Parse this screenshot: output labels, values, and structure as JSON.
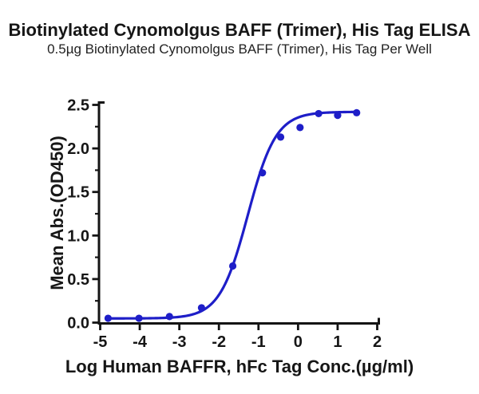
{
  "title": "Biotinylated Cynomolgus BAFF (Trimer), His Tag ELISA",
  "subtitle": "0.5µg Biotinylated Cynomolgus BAFF (Trimer), His Tag Per Well",
  "chart_data": {
    "type": "scatter",
    "title": "Biotinylated Cynomolgus BAFF (Trimer), His Tag ELISA",
    "subtitle": "0.5µg Biotinylated Cynomolgus BAFF (Trimer), His Tag Per Well",
    "xlabel": "Log Human BAFFR, hFc Tag Conc.(µg/ml)",
    "ylabel": "Mean Abs.(OD450)",
    "xlim": [
      -5,
      2
    ],
    "ylim": [
      0,
      2.5
    ],
    "grid": false,
    "legend": "none",
    "xticks": [
      -5,
      -4,
      -3,
      -2,
      -1,
      0,
      1,
      2
    ],
    "xtick_labels": [
      "-5",
      "-4",
      "-3",
      "-2",
      "-1",
      "0",
      "1",
      "2"
    ],
    "yticks": [
      0,
      0.5,
      1,
      1.5,
      2,
      2.5
    ],
    "ytick_labels": [
      "0.0",
      "0.5",
      "1.0",
      "1.5",
      "2.0",
      "2.5"
    ],
    "y_minor_ticks": [
      0.25,
      0.75,
      1.25,
      1.75,
      2.25
    ],
    "points": [
      [
        -4.8,
        0.05
      ],
      [
        -4.02,
        0.05
      ],
      [
        -3.25,
        0.07
      ],
      [
        -2.44,
        0.17
      ],
      [
        -1.65,
        0.65
      ],
      [
        -0.9,
        1.72
      ],
      [
        -0.44,
        2.13
      ],
      [
        0.05,
        2.24
      ],
      [
        0.52,
        2.4
      ],
      [
        1.0,
        2.38
      ],
      [
        1.48,
        2.41
      ]
    ],
    "fit_curve": {
      "model": "4PL",
      "bottom": 0.048,
      "top": 2.42,
      "log_ec50": -1.27,
      "hill": 1.22,
      "x_start": -4.8,
      "x_end": 1.48
    },
    "colors": {
      "curve": "#1E1EC8",
      "axis": "#141414",
      "text": "#161616"
    }
  }
}
